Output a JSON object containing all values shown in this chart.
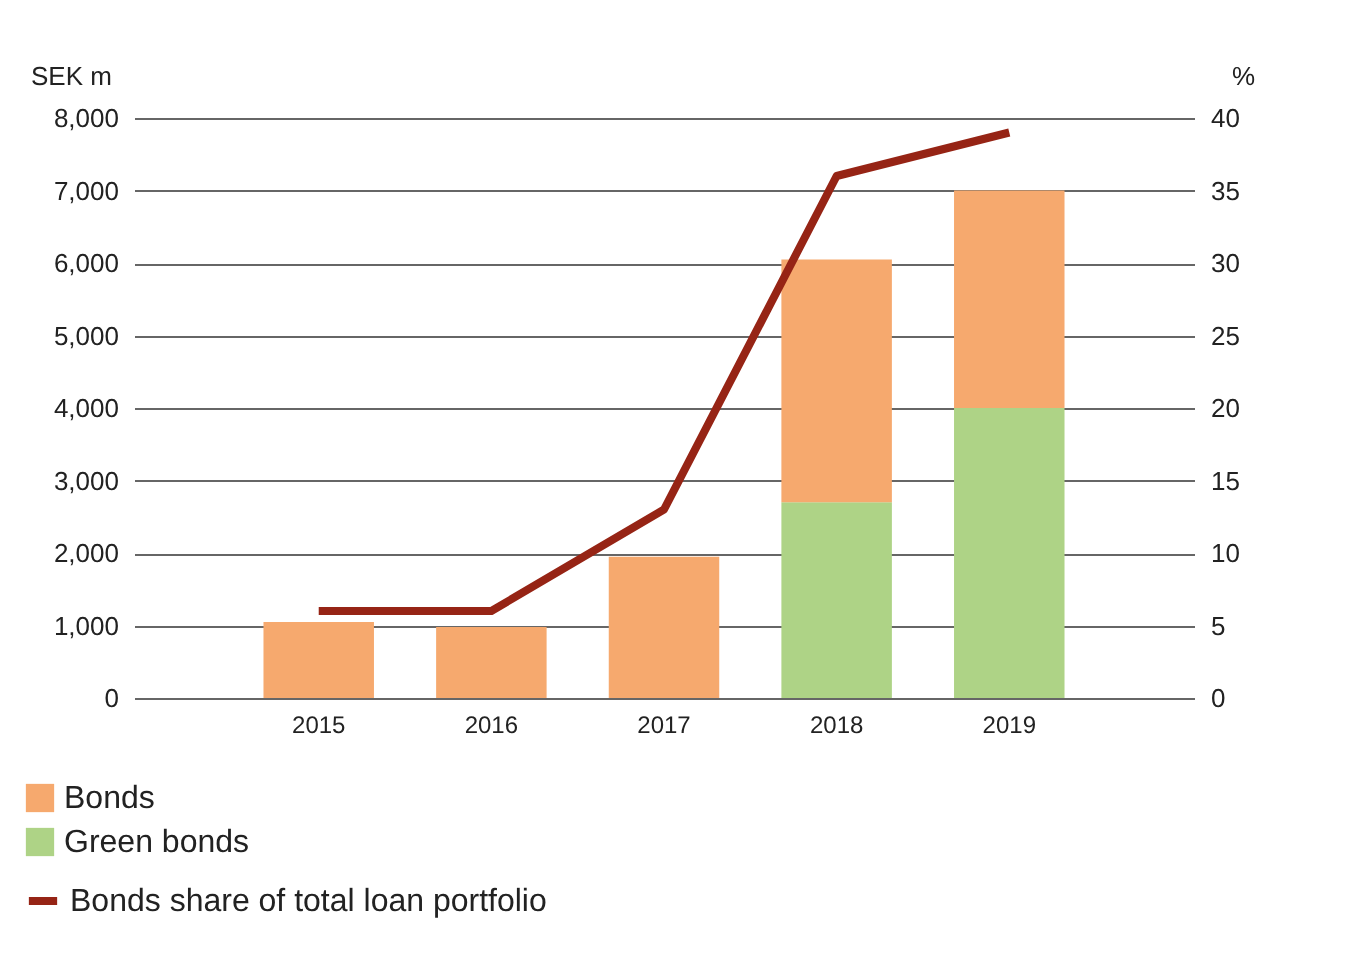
{
  "chart_data": {
    "type": "bar",
    "stacked": true,
    "ylabel": "SEK m",
    "y2label": "%",
    "categories": [
      "2015",
      "2016",
      "2017",
      "2018",
      "2019"
    ],
    "series": [
      {
        "name": "Green bonds",
        "color": "#aed386",
        "values": [
          0,
          0,
          0,
          2700,
          4000
        ]
      },
      {
        "name": "Bonds",
        "color": "#f6a96e",
        "values": [
          1050,
          980,
          1950,
          3350,
          3000
        ]
      },
      {
        "name": "Bonds share of total loan portfolio",
        "color": "#962415",
        "type": "line",
        "axis": "y2",
        "values": [
          6,
          6,
          13,
          36,
          39
        ]
      }
    ],
    "ylim": [
      0,
      8000
    ],
    "yticks": [
      0,
      {
        "value": 1000,
        "label": "1,000"
      },
      {
        "value": 2000,
        "label": "2,000"
      },
      {
        "value": 3000,
        "label": "3,000"
      },
      {
        "value": 4000,
        "label": "4,000"
      },
      {
        "value": 5000,
        "label": "5,000"
      },
      {
        "value": 6000,
        "label": "6,000"
      },
      {
        "value": 7000,
        "label": "7,000"
      },
      {
        "value": 8000,
        "label": "8,000"
      }
    ],
    "y2lim": [
      0,
      40
    ],
    "y2ticks": [
      0,
      5,
      10,
      15,
      20,
      25,
      30,
      35,
      40
    ],
    "grid": "y",
    "legend": "bottom left",
    "marker": "none"
  }
}
